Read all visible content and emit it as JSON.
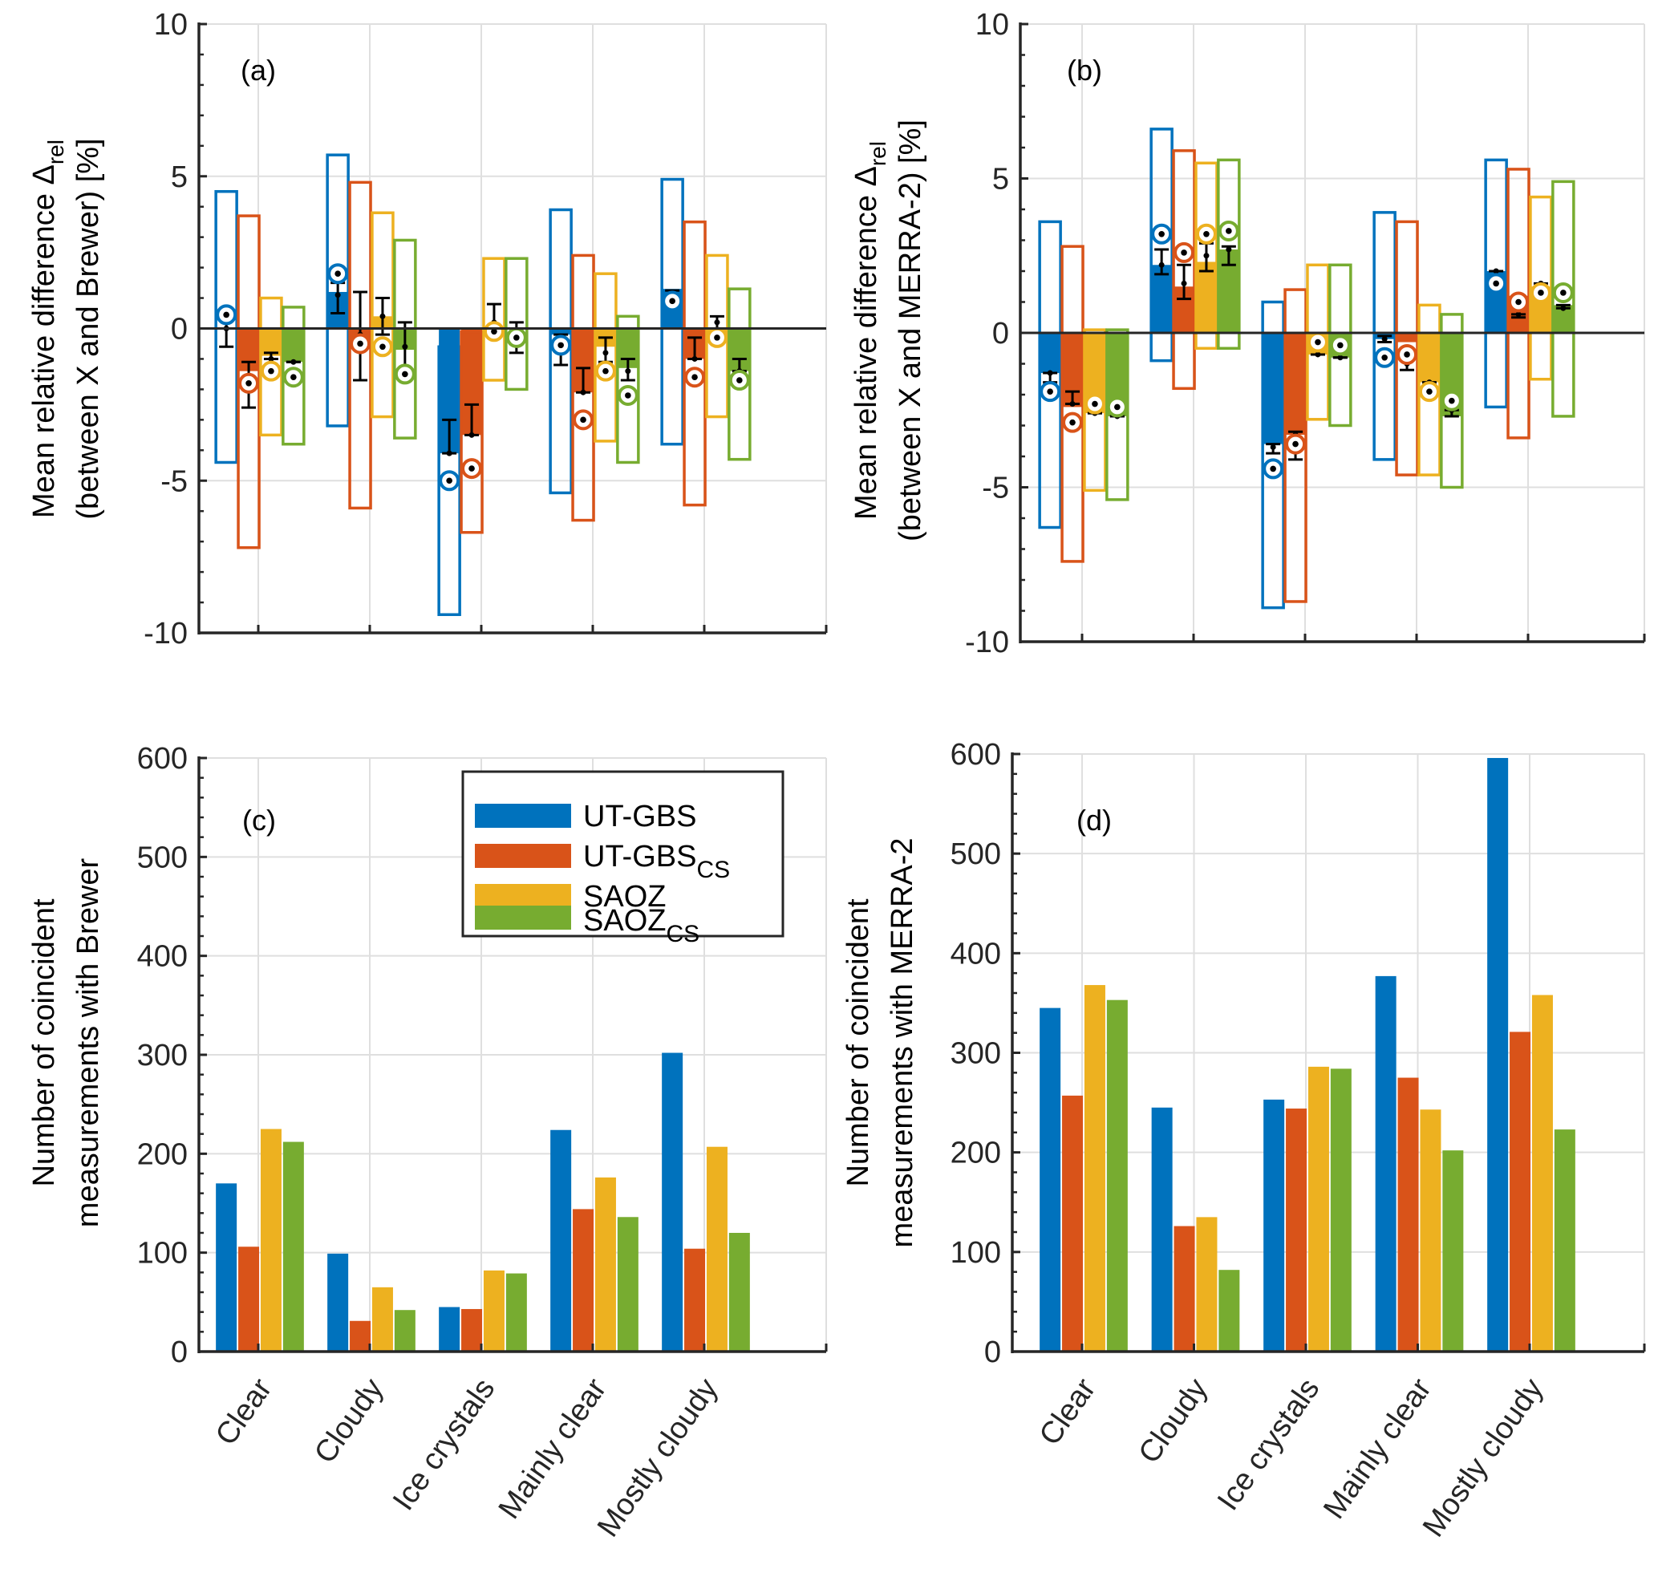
{
  "colors": {
    "UT-GBS": "#0072BD",
    "UT-GBS_CS": "#D95319",
    "SAOZ": "#EDB120",
    "SAOZ_CS": "#77AC30",
    "axis": "#262626",
    "grid": "#dfdfdf"
  },
  "legend": {
    "placement": "top-right of panel (c)",
    "entries": [
      {
        "key": "UT-GBS",
        "label": "UT-GBS",
        "sub": ""
      },
      {
        "key": "UT-GBS_CS",
        "label": "UT-GBS",
        "sub": "CS"
      },
      {
        "key": "SAOZ",
        "label": "SAOZ",
        "sub": ""
      },
      {
        "key": "SAOZ_CS",
        "label": "SAOZ",
        "sub": "CS"
      }
    ]
  },
  "chart_data": [
    {
      "id": "a",
      "type": "bar",
      "panel_label": "(a)",
      "ylabel_line1": "Mean relative difference  Δ",
      "ylabel_sub": "rel",
      "ylabel_line2": "(between X and Brewer) [%]",
      "ylim": [
        -10,
        10
      ],
      "yticks": [
        -10,
        -5,
        0,
        5,
        10
      ],
      "grid": true,
      "categories": [
        "Clear",
        "Cloudy",
        "Ice crystals",
        "Mainly clear",
        "Mostly cloudy"
      ],
      "series": [
        {
          "name": "UT-GBS",
          "mean": [
            0.0,
            1.2,
            -4.1,
            -0.2,
            1.3
          ],
          "range_low": [
            -4.4,
            -3.2,
            -9.4,
            -5.4,
            -3.8
          ],
          "range_high": [
            4.5,
            5.7,
            -0.6,
            3.9,
            4.9
          ],
          "median": [
            0.45,
            1.8,
            -5.0,
            -0.55,
            0.9
          ],
          "point": [
            0.0,
            1.1,
            -4.1,
            -0.6,
            1.0
          ],
          "err_low": [
            -0.6,
            0.5,
            -4.1,
            -1.2,
            0.8
          ],
          "err_high": [
            0.3,
            1.5,
            -3.0,
            -0.2,
            1.25
          ]
        },
        {
          "name": "UT-GBS_CS",
          "mean": [
            -1.4,
            -0.4,
            -3.5,
            -2.1,
            -1.0
          ],
          "range_low": [
            -7.2,
            -5.9,
            -6.7,
            -6.3,
            -5.8
          ],
          "range_high": [
            3.7,
            4.8,
            -0.1,
            2.4,
            3.5
          ],
          "median": [
            -1.8,
            -0.5,
            -4.6,
            -3.0,
            -1.6
          ],
          "point": [
            -1.9,
            -0.2,
            -3.5,
            -2.1,
            -1.0
          ],
          "err_low": [
            -2.6,
            -1.7,
            -3.5,
            -2.1,
            -1.0
          ],
          "err_high": [
            -1.1,
            1.2,
            -2.5,
            -1.3,
            -0.3
          ]
        },
        {
          "name": "SAOZ",
          "mean": [
            -0.9,
            0.4,
            0.0,
            -0.6,
            -0.3
          ],
          "range_low": [
            -3.5,
            -2.9,
            -1.7,
            -3.7,
            -2.9
          ],
          "range_high": [
            1.0,
            3.8,
            2.3,
            1.8,
            2.4
          ],
          "median": [
            -1.4,
            -0.6,
            -0.1,
            -1.4,
            -0.3
          ],
          "point": [
            -1.0,
            0.4,
            0.2,
            -0.8,
            0.2
          ],
          "err_low": [
            -1.0,
            -0.2,
            -0.1,
            -1.1,
            -0.3
          ],
          "err_high": [
            -0.8,
            1.0,
            0.8,
            -0.3,
            0.4
          ]
        },
        {
          "name": "SAOZ_CS",
          "mean": [
            -1.1,
            -0.7,
            0.0,
            -1.3,
            -1.4
          ],
          "range_low": [
            -3.8,
            -3.6,
            -2.0,
            -4.4,
            -4.3
          ],
          "range_high": [
            0.7,
            2.9,
            2.3,
            0.4,
            1.3
          ],
          "median": [
            -1.6,
            -1.5,
            -0.3,
            -2.2,
            -1.7
          ],
          "point": [
            -1.1,
            -0.6,
            -0.3,
            -1.4,
            -1.4
          ],
          "err_low": [
            -1.1,
            -1.5,
            -0.8,
            -1.7,
            -1.4
          ],
          "err_high": [
            -1.1,
            0.2,
            0.2,
            -1.0,
            -1.0
          ]
        }
      ]
    },
    {
      "id": "b",
      "type": "bar",
      "panel_label": "(b)",
      "ylabel_line1": "Mean relative difference Δ",
      "ylabel_sub": "rel",
      "ylabel_line2": "(between X and MERRA-2) [%]",
      "ylim": [
        -10,
        10
      ],
      "yticks": [
        -10,
        -5,
        0,
        5,
        10
      ],
      "grid": true,
      "categories": [
        "Clear",
        "Cloudy",
        "Ice crystals",
        "Mainly clear",
        "Mostly cloudy"
      ],
      "series": [
        {
          "name": "UT-GBS",
          "mean": [
            -1.3,
            2.2,
            -3.6,
            -0.2,
            2.0
          ],
          "range_low": [
            -6.3,
            -0.9,
            -8.9,
            -4.1,
            -2.4
          ],
          "range_high": [
            3.6,
            6.6,
            1.0,
            3.9,
            5.6
          ],
          "median": [
            -1.9,
            3.2,
            -4.4,
            -0.8,
            1.6
          ],
          "point": [
            -1.3,
            2.2,
            -3.7,
            -0.2,
            2.0
          ],
          "err_low": [
            -1.6,
            1.9,
            -3.9,
            -0.3,
            1.8
          ],
          "err_high": [
            -1.3,
            2.7,
            -3.6,
            -0.1,
            2.0
          ]
        },
        {
          "name": "UT-GBS_CS",
          "mean": [
            -2.4,
            1.5,
            -3.3,
            -0.3,
            1.2
          ],
          "range_low": [
            -7.4,
            -1.8,
            -8.7,
            -4.6,
            -3.4
          ],
          "range_high": [
            2.8,
            5.9,
            1.4,
            3.6,
            5.3
          ],
          "median": [
            -2.9,
            2.6,
            -3.6,
            -0.7,
            1.0
          ],
          "point": [
            -2.3,
            1.6,
            -3.3,
            -1.0,
            0.6
          ],
          "err_low": [
            -2.3,
            1.1,
            -4.1,
            -1.2,
            0.5
          ],
          "err_high": [
            -1.9,
            2.2,
            -3.2,
            -0.7,
            0.6
          ]
        },
        {
          "name": "SAOZ",
          "mean": [
            -2.6,
            2.3,
            -0.7,
            -1.6,
            1.5
          ],
          "range_low": [
            -5.1,
            -0.5,
            -2.8,
            -4.6,
            -1.5
          ],
          "range_high": [
            0.1,
            5.5,
            2.2,
            0.9,
            4.4
          ],
          "median": [
            -2.3,
            3.2,
            -0.3,
            -1.9,
            1.3
          ],
          "point": [
            -2.6,
            2.5,
            -0.7,
            -1.6,
            1.6
          ],
          "err_low": [
            -2.6,
            2.0,
            -0.7,
            -1.7,
            1.5
          ],
          "err_high": [
            -2.6,
            2.9,
            -0.7,
            -1.6,
            1.6
          ]
        },
        {
          "name": "SAOZ_CS",
          "mean": [
            -2.7,
            2.7,
            -0.8,
            -2.7,
            0.9
          ],
          "range_low": [
            -5.4,
            -0.5,
            -3.0,
            -5.0,
            -2.7
          ],
          "range_high": [
            0.1,
            5.6,
            2.2,
            0.6,
            4.9
          ],
          "median": [
            -2.4,
            3.3,
            -0.4,
            -2.2,
            1.3
          ],
          "point": [
            -2.7,
            2.7,
            -0.8,
            -2.5,
            0.8
          ],
          "err_low": [
            -2.7,
            2.2,
            -0.8,
            -2.7,
            0.8
          ],
          "err_high": [
            -2.7,
            2.8,
            -0.8,
            -2.5,
            0.9
          ]
        }
      ]
    },
    {
      "id": "c",
      "type": "bar",
      "panel_label": "(c)",
      "ylabel_line1": "Number of coincident",
      "ylabel_line2": "measurements with Brewer",
      "ylim": [
        0,
        600
      ],
      "yticks": [
        0,
        100,
        200,
        300,
        400,
        500,
        600
      ],
      "grid": true,
      "categories": [
        "Clear",
        "Cloudy",
        "Ice crystals",
        "Mainly clear",
        "Mostly cloudy"
      ],
      "series": [
        {
          "name": "UT-GBS",
          "values": [
            170,
            99,
            45,
            224,
            302
          ]
        },
        {
          "name": "UT-GBS_CS",
          "values": [
            106,
            31,
            43,
            144,
            104
          ]
        },
        {
          "name": "SAOZ",
          "values": [
            225,
            65,
            82,
            176,
            207
          ]
        },
        {
          "name": "SAOZ_CS",
          "values": [
            212,
            42,
            79,
            136,
            120
          ]
        }
      ]
    },
    {
      "id": "d",
      "type": "bar",
      "panel_label": "(d)",
      "ylabel_line1": "Number of coincident",
      "ylabel_line2": "measurements with MERRA-2",
      "ylim": [
        0,
        600
      ],
      "yticks": [
        0,
        100,
        200,
        300,
        400,
        500,
        600
      ],
      "grid": true,
      "categories": [
        "Clear",
        "Cloudy",
        "Ice crystals",
        "Mainly clear",
        "Mostly cloudy"
      ],
      "series": [
        {
          "name": "UT-GBS",
          "values": [
            345,
            245,
            253,
            377,
            596
          ]
        },
        {
          "name": "UT-GBS_CS",
          "values": [
            257,
            126,
            244,
            275,
            321
          ]
        },
        {
          "name": "SAOZ",
          "values": [
            368,
            135,
            286,
            243,
            358
          ]
        },
        {
          "name": "SAOZ_CS",
          "values": [
            353,
            82,
            284,
            202,
            223
          ]
        }
      ]
    }
  ]
}
